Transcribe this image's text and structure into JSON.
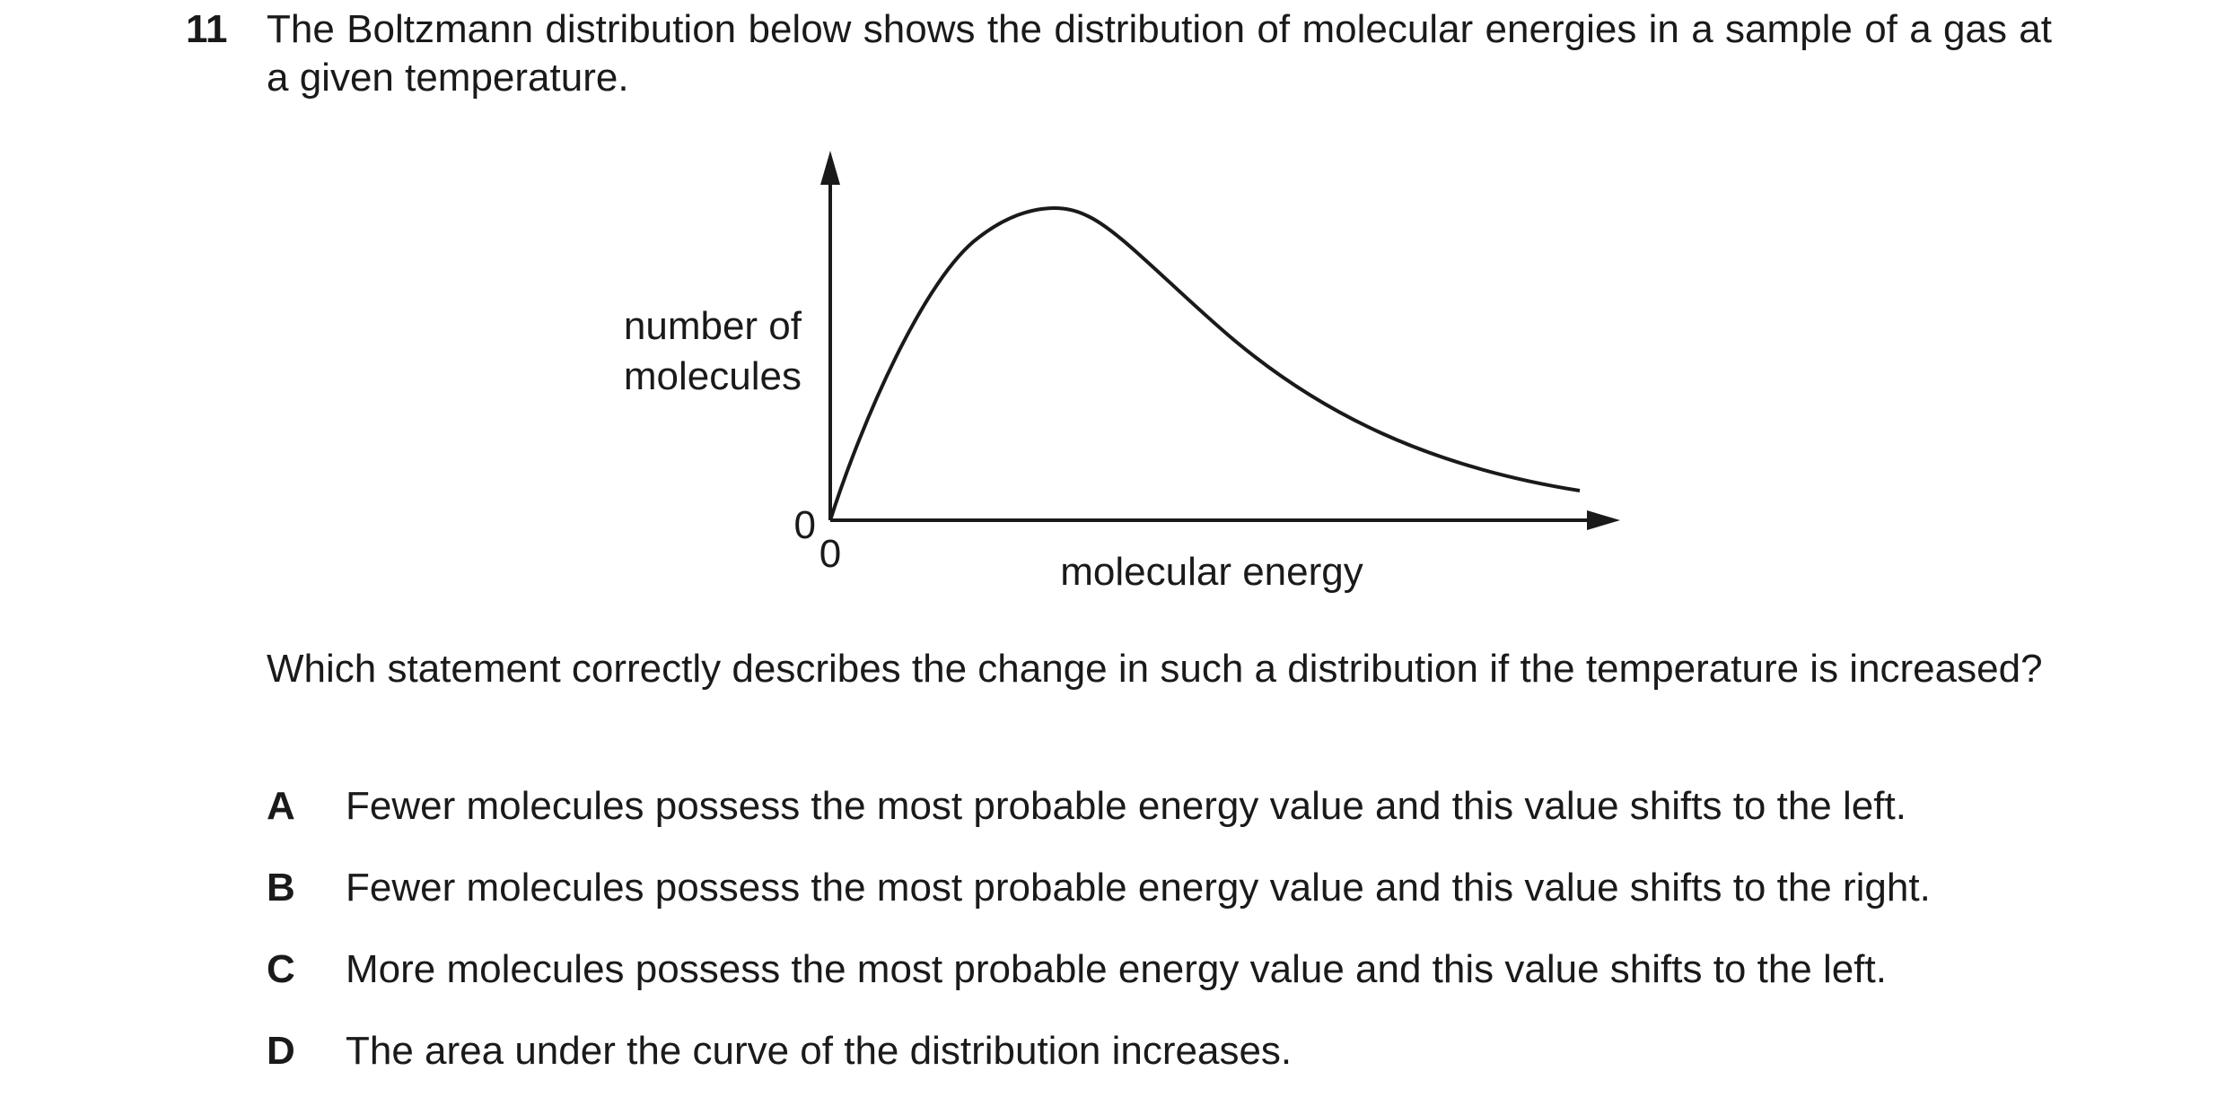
{
  "question": {
    "number": "11",
    "intro": "The Boltzmann distribution below shows the distribution of molecular energies in a sample of a gas at a given temperature.",
    "prompt": "Which statement correctly describes the change in such a distribution if the temperature is increased?"
  },
  "diagram": {
    "y_label_line1": "number of",
    "y_label_line2": "molecules",
    "x_label": "molecular energy",
    "y_origin": "0",
    "x_origin": "0"
  },
  "options": [
    {
      "letter": "A",
      "text": "Fewer molecules possess the most probable energy value and this value shifts to the left."
    },
    {
      "letter": "B",
      "text": "Fewer molecules possess the most probable energy value and this value shifts to the right."
    },
    {
      "letter": "C",
      "text": "More molecules possess the most probable energy value and this value shifts to the left."
    },
    {
      "letter": "D",
      "text": "The area under the curve of the distribution increases."
    }
  ]
}
